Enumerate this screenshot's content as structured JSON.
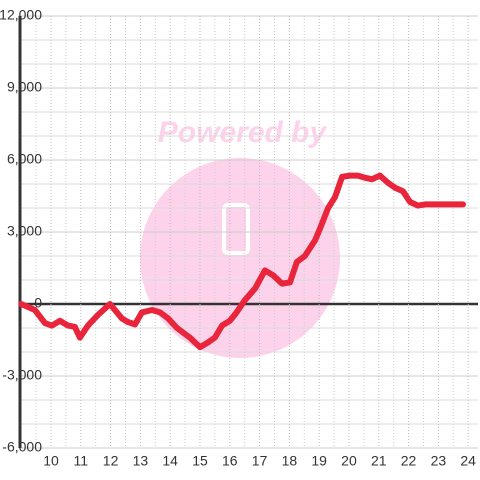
{
  "chart_data": {
    "type": "line",
    "watermark": "Powered by",
    "x": [
      9.0,
      9.46,
      9.8,
      10.03,
      10.3,
      10.57,
      10.8,
      10.97,
      11.24,
      11.58,
      11.98,
      12.38,
      12.58,
      12.82,
      13.05,
      13.39,
      13.66,
      13.93,
      14.23,
      14.66,
      15.0,
      15.27,
      15.5,
      15.74,
      16.0,
      16.2,
      16.5,
      16.85,
      17.18,
      17.45,
      17.75,
      18.02,
      18.25,
      18.52,
      18.86,
      19.03,
      19.3,
      19.53,
      19.77,
      20.03,
      20.3,
      20.57,
      20.77,
      21.04,
      21.31,
      21.54,
      21.81,
      22.05,
      22.32,
      22.55,
      23.05,
      23.83
    ],
    "series": [
      {
        "color": "#e8253b",
        "values": [
          0,
          -250,
          -800,
          -900,
          -700,
          -900,
          -950,
          -1400,
          -900,
          -450,
          0,
          -600,
          -750,
          -850,
          -350,
          -250,
          -350,
          -600,
          -1000,
          -1400,
          -1800,
          -1600,
          -1400,
          -900,
          -700,
          -400,
          150,
          650,
          1400,
          1200,
          850,
          900,
          1750,
          2000,
          2650,
          3150,
          4000,
          4450,
          5300,
          5350,
          5350,
          5250,
          5200,
          5350,
          5050,
          4850,
          4700,
          4250,
          4100,
          4150,
          4150,
          4150
        ]
      }
    ],
    "xlim": [
      8.96,
      24.33
    ],
    "xticks": [
      10,
      11,
      12,
      13,
      14,
      15,
      16,
      17,
      18,
      19,
      20,
      21,
      22,
      23,
      24
    ],
    "ylim": [
      -6000,
      12000
    ],
    "yticks": [
      {
        "value": -6000,
        "label": "-6,000"
      },
      {
        "value": -3000,
        "label": "-3,000"
      },
      0,
      {
        "value": 3000,
        "label": "3,000"
      },
      {
        "value": 6000,
        "label": "6,000"
      },
      {
        "value": 9000,
        "label": "9,000"
      },
      {
        "value": 12000,
        "label": "12,000"
      }
    ],
    "grid": true
  }
}
